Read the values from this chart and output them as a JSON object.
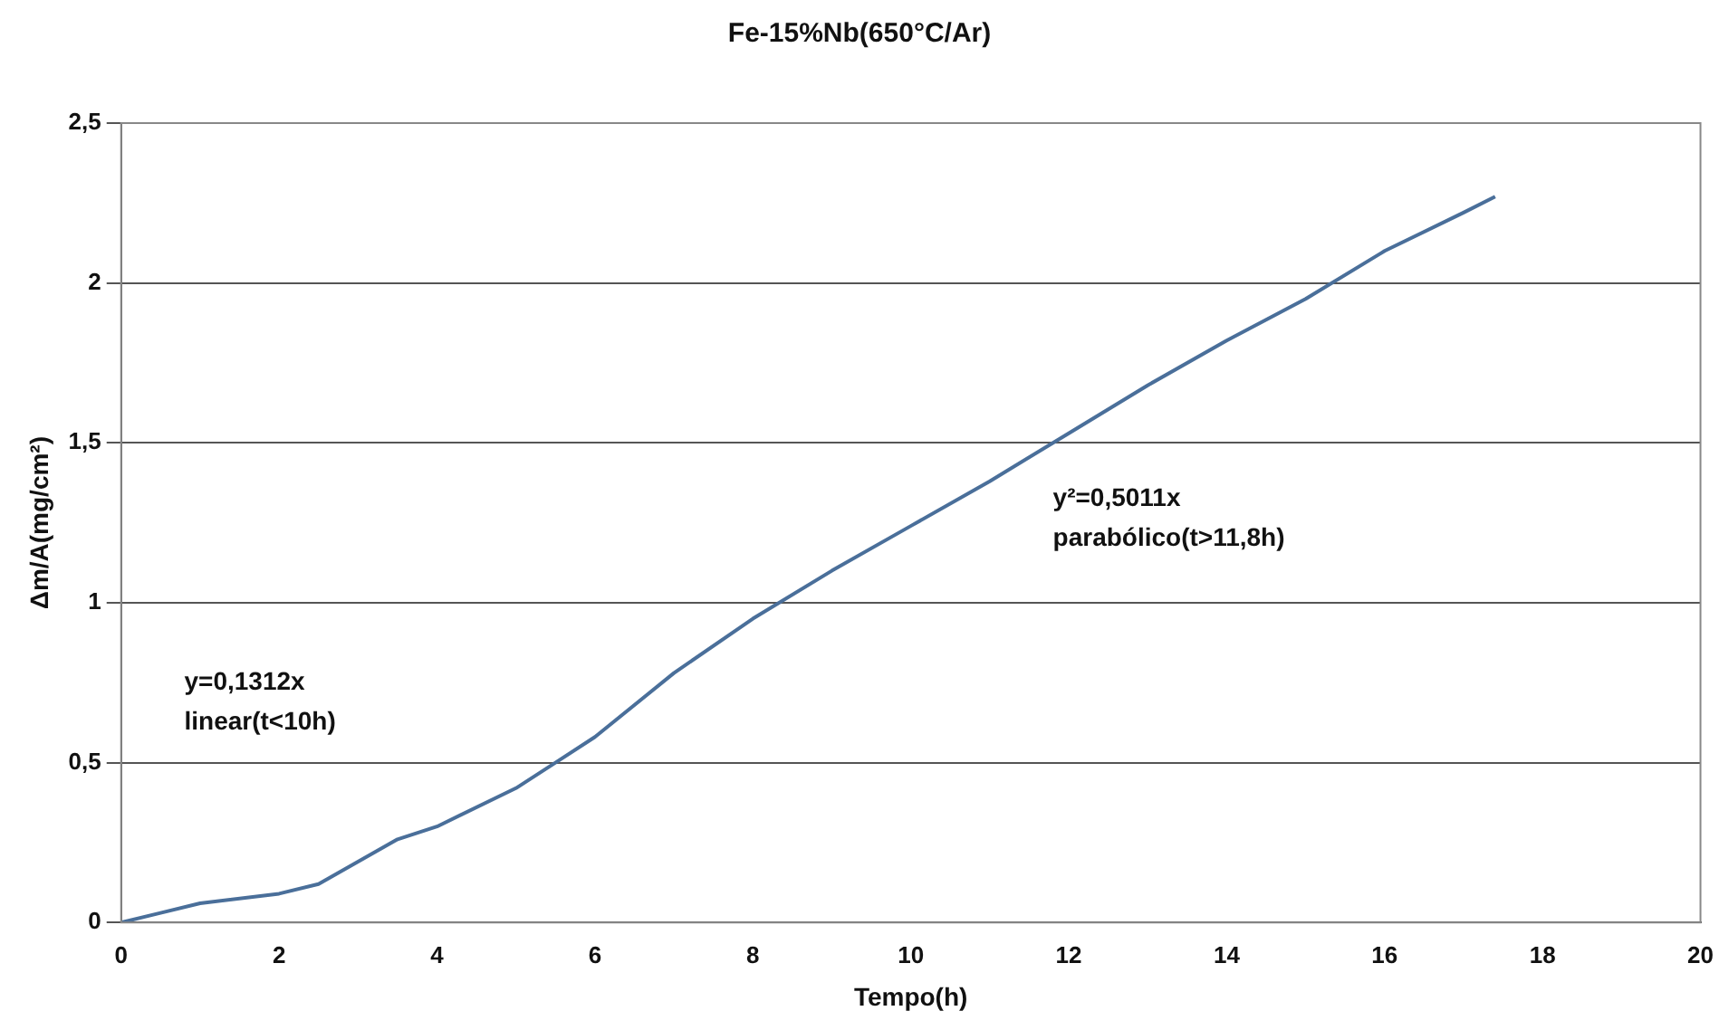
{
  "chart_data": {
    "type": "line",
    "title": "Fe-15%Nb(650°C/Ar)",
    "xlabel": "Tempo(h)",
    "ylabel": "Δm/A(mg/cm²)",
    "annotations": [
      "y=0,1312x",
      "linear(t<10h)",
      "y²=0,5011x",
      "parabólico(t>11,8h)"
    ],
    "x": [
      0,
      0.5,
      1,
      2,
      2.5,
      3,
      3.5,
      4,
      5,
      5.5,
      6,
      7,
      8,
      9,
      10,
      11,
      12,
      13,
      14,
      15,
      16,
      17,
      17.4
    ],
    "series": [
      {
        "color": "#4a6f9a",
        "values": [
          0,
          0.03,
          0.06,
          0.09,
          0.12,
          0.19,
          0.26,
          0.3,
          0.42,
          0.5,
          0.58,
          0.78,
          0.95,
          1.1,
          1.24,
          1.38,
          1.53,
          1.68,
          1.82,
          1.95,
          2.1,
          2.22,
          2.27
        ]
      }
    ],
    "xlim": [
      0,
      20
    ],
    "xticks": [
      0,
      2,
      4,
      6,
      8,
      10,
      12,
      14,
      16,
      18,
      20
    ],
    "ylim": [
      0,
      2.5
    ],
    "yticks": [
      0,
      {
        "value": 0.5,
        "label": "0,5"
      },
      1,
      {
        "value": 1.5,
        "label": "1,5"
      },
      2,
      {
        "value": 2.5,
        "label": "2,5"
      }
    ],
    "grid": "y",
    "legend": false,
    "marker": "none",
    "line_style": "solid"
  }
}
